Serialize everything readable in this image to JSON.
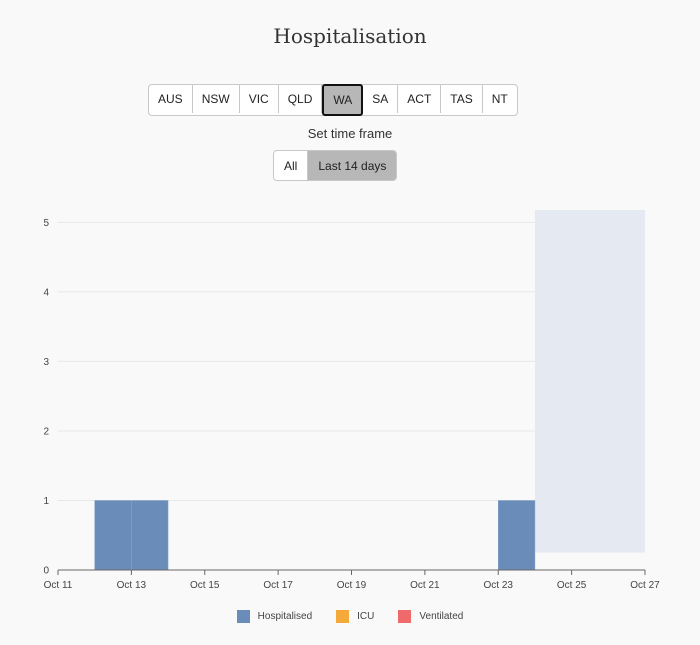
{
  "title": "Hospitalisation",
  "regions": [
    {
      "label": "AUS",
      "active": false
    },
    {
      "label": "NSW",
      "active": false
    },
    {
      "label": "VIC",
      "active": false
    },
    {
      "label": "QLD",
      "active": false
    },
    {
      "label": "WA",
      "active": true
    },
    {
      "label": "SA",
      "active": false
    },
    {
      "label": "ACT",
      "active": false
    },
    {
      "label": "TAS",
      "active": false
    },
    {
      "label": "NT",
      "active": false
    }
  ],
  "timeframe": {
    "label": "Set time frame",
    "options": [
      {
        "label": "All",
        "active": false
      },
      {
        "label": "Last 14 days",
        "active": true
      }
    ]
  },
  "chart_data": {
    "type": "bar",
    "series": [
      {
        "name": "Hospitalised",
        "color": "#6a8cb9",
        "points": [
          {
            "date": "2021-10-12",
            "value": 1
          },
          {
            "date": "2021-10-13",
            "value": 1
          },
          {
            "date": "2021-10-23",
            "value": 1
          }
        ]
      },
      {
        "name": "ICU",
        "color": "#f5a93a",
        "points": []
      },
      {
        "name": "Ventilated",
        "color": "#ef6b6b",
        "points": []
      }
    ],
    "x_tick_labels": [
      "Oct 11",
      "Oct 13",
      "Oct 15",
      "Oct 17",
      "Oct 19",
      "Oct 21",
      "Oct 23",
      "Oct 25",
      "Oct 27"
    ],
    "x_range": [
      "2021-10-11",
      "2021-10-27"
    ],
    "y_ticks": [
      0,
      1,
      2,
      3,
      4,
      5
    ],
    "ylim": [
      0,
      5.25
    ],
    "shaded_range": {
      "from": "2021-10-24",
      "to": "2021-10-27",
      "y_from": 0.25,
      "color": "#e4e9f2"
    },
    "grid": true,
    "legend_position": "bottom"
  }
}
